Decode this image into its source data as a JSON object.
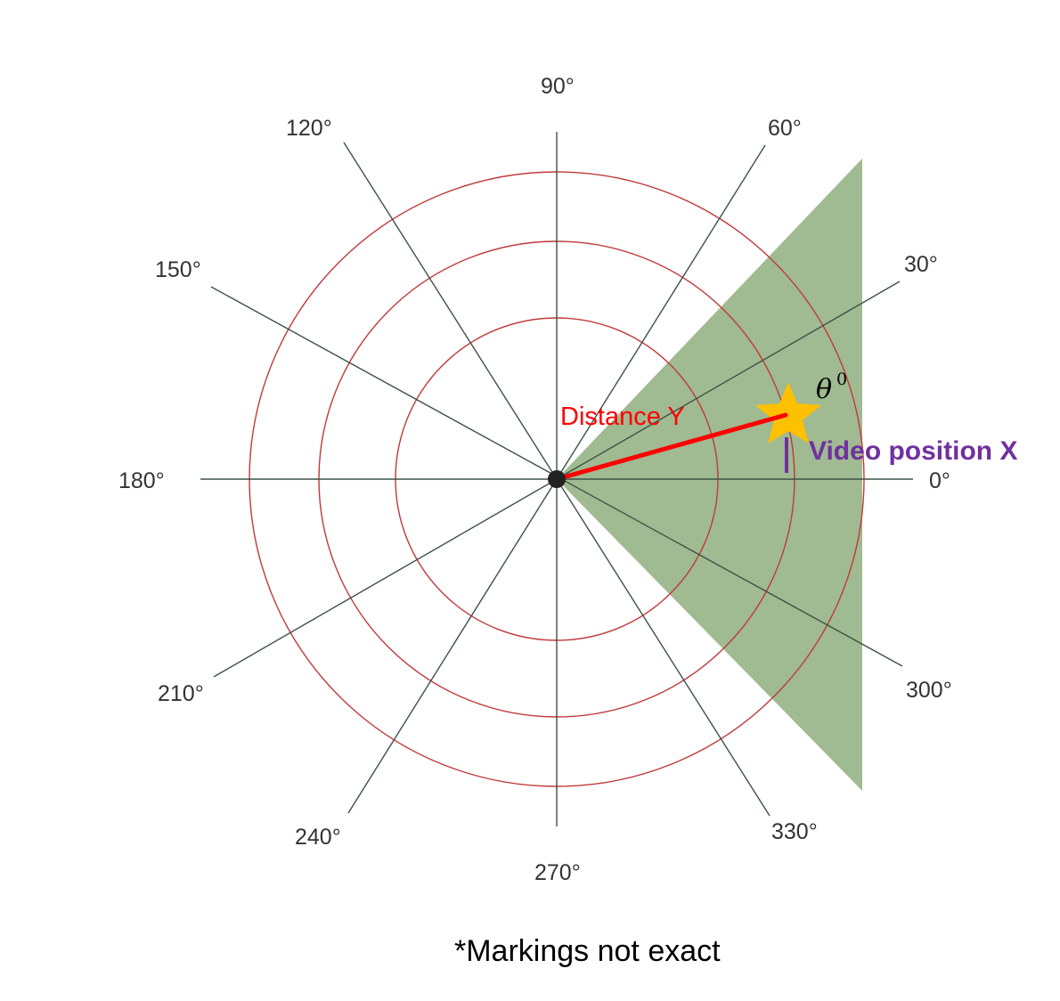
{
  "diagram": {
    "angle_labels": [
      "0°",
      "30°",
      "60°",
      "90°",
      "120°",
      "150°",
      "180°",
      "210°",
      "240°",
      "270°",
      "300°",
      "330°"
    ],
    "distance_label": "Distance Y",
    "video_position_label": "Video position X",
    "theta_symbol": "θ",
    "theta_superscript": "0",
    "footnote": "*Markings not exact",
    "colors": {
      "ring": "#c0393b",
      "spoke": "#3d5248",
      "field_of_view": "#8fae7e",
      "distance_line": "#ff0000",
      "video_marker": "#7030a0",
      "star": "#ffc000",
      "center_dot": "#222222"
    }
  }
}
